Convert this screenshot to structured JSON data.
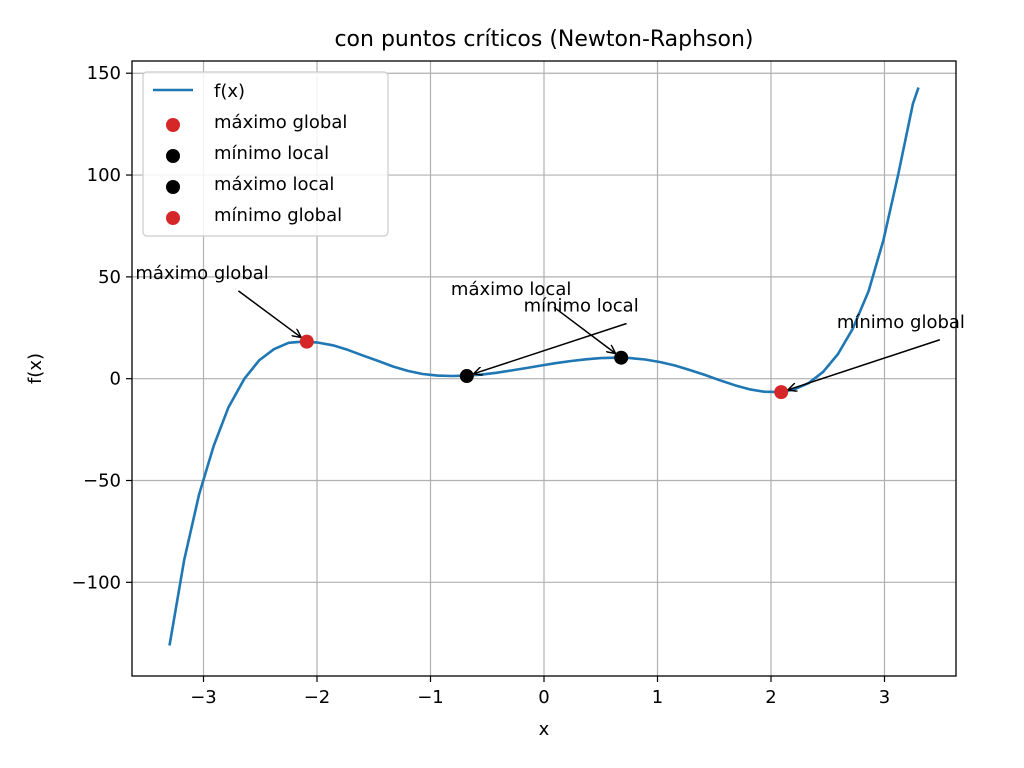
{
  "chart_data": {
    "type": "line",
    "title": "con puntos críticos (Newton-Raphson)",
    "xlabel": "x",
    "ylabel": "f(x)",
    "xlim": [
      -3.63,
      3.63
    ],
    "ylim": [
      -146,
      156
    ],
    "xticks": [
      -3,
      -2,
      -1,
      0,
      1,
      2,
      3
    ],
    "yticks": [
      -100,
      -50,
      0,
      50,
      100,
      150
    ],
    "xtick_labels": [
      "−3",
      "−2",
      "−1",
      "0",
      "1",
      "2",
      "3"
    ],
    "ytick_labels": [
      "−100",
      "−50",
      "0",
      "50",
      "100",
      "150"
    ],
    "grid": true,
    "legend_position": "top-left",
    "series": [
      {
        "name": "f(x)",
        "color": "#1f77b4",
        "x": [
          -3.3,
          -3.17,
          -3.04,
          -2.91,
          -2.78,
          -2.64,
          -2.51,
          -2.38,
          -2.25,
          -2.12,
          -1.99,
          -1.86,
          -1.73,
          -1.6,
          -1.46,
          -1.33,
          -1.2,
          -1.07,
          -0.94,
          -0.81,
          -0.68,
          -0.55,
          -0.42,
          -0.29,
          -0.16,
          -0.03,
          0.1,
          0.24,
          0.37,
          0.5,
          0.63,
          0.76,
          0.89,
          1.02,
          1.15,
          1.28,
          1.42,
          1.55,
          1.68,
          1.81,
          1.94,
          2.07,
          2.2,
          2.33,
          2.46,
          2.59,
          2.72,
          2.86,
          2.99,
          3.12,
          3.25,
          3.3
        ],
        "y": [
          -131,
          -89,
          -57,
          -33,
          -14,
          0,
          9,
          14.5,
          17.6,
          18.2,
          17.7,
          16.4,
          14.2,
          11.5,
          8.7,
          6.0,
          3.8,
          2.3,
          1.5,
          1.3,
          1.5,
          2.0,
          2.9,
          4.0,
          5.2,
          6.4,
          7.6,
          8.7,
          9.5,
          10.1,
          10.3,
          10.1,
          9.4,
          8.2,
          6.5,
          4.3,
          1.8,
          -0.8,
          -3.2,
          -5.2,
          -6.4,
          -6.6,
          -5.4,
          -2.2,
          3.4,
          12.1,
          24.5,
          43,
          68,
          100,
          135,
          143
        ]
      }
    ],
    "points": [
      {
        "name": "máximo global",
        "x": -2.09,
        "y": 18.2,
        "color": "#d62728"
      },
      {
        "name": "mínimo local",
        "x": -0.68,
        "y": 1.3,
        "color": "#000000"
      },
      {
        "name": "máximo local",
        "x": 0.68,
        "y": 10.3,
        "color": "#000000"
      },
      {
        "name": "mínimo global",
        "x": 2.09,
        "y": -6.6,
        "color": "#d62728"
      }
    ],
    "annotations": [
      {
        "text": "máximo global",
        "text_x": -3.6,
        "text_y": 49,
        "point_x": -2.09,
        "point_y": 18.2
      },
      {
        "text": "mínimo local",
        "text_x": -0.18,
        "text_y": 33,
        "point_x": -0.68,
        "point_y": 1.3
      },
      {
        "text": "máximo local",
        "text_x": -0.82,
        "text_y": 41,
        "point_x": 0.68,
        "point_y": 10.3
      },
      {
        "text": "mínimo global",
        "text_x": 2.58,
        "text_y": 25,
        "point_x": 2.09,
        "point_y": -6.6
      }
    ],
    "colors": {
      "line": "#1f77b4",
      "global": "#d62728",
      "local": "#000000",
      "grid": "#b0b0b0"
    }
  }
}
